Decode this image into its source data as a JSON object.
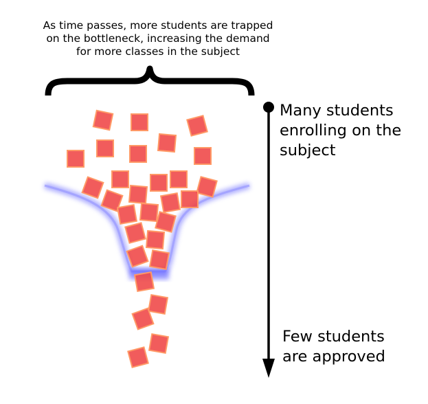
{
  "caption": {
    "lines": [
      "As time passes, more students are trapped",
      "on the bottleneck, increasing the demand",
      "for more classes in the subject"
    ]
  },
  "axis": {
    "top_label": [
      "Many students",
      "enrolling on the",
      "subject"
    ],
    "bottom_label": [
      "Few students",
      "are approved"
    ]
  },
  "colors": {
    "square_fill": "#f04a4a",
    "square_stroke": "#ff9966",
    "funnel_glow": "#6a6aff",
    "brace": "#000000",
    "arrow": "#000000"
  },
  "icons": {
    "brace": "curly-brace-icon",
    "arrow": "downward-arrow-icon"
  }
}
